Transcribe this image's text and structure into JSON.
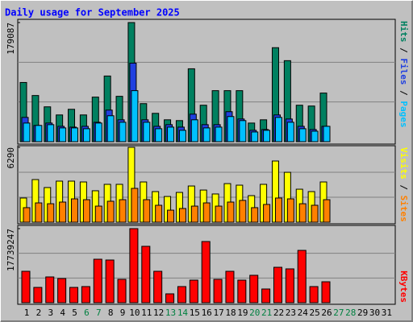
{
  "chart_data": [
    {
      "type": "bar",
      "title": "Daily usage for September 2025",
      "legend_separator": " / ",
      "ylim": [
        0,
        179087
      ],
      "yticks": [
        179087
      ],
      "series": [
        {
          "name": "Hits",
          "color": "#008060",
          "values": [
            89000,
            69400,
            52400,
            40200,
            48700,
            40200,
            67000,
            98700,
            68200,
            179087,
            57200,
            42600,
            32900,
            31700,
            109600,
            54800,
            76700,
            76700,
            76700,
            28000,
            32900,
            141300,
            121800,
            54800,
            53600,
            73100,
            null,
            null,
            null,
            null,
            null
          ]
        },
        {
          "name": "Files",
          "color": "#2040e0",
          "values": [
            36500,
            24400,
            28000,
            23100,
            21900,
            23100,
            29200,
            47500,
            32900,
            118100,
            32900,
            23100,
            25600,
            21900,
            41400,
            25600,
            25600,
            45100,
            34100,
            17100,
            18300,
            40200,
            34100,
            23100,
            18300,
            23100,
            null,
            null,
            null,
            null,
            null
          ]
        },
        {
          "name": "Pages",
          "color": "#00c0ff",
          "values": [
            28000,
            24400,
            25600,
            20700,
            20700,
            19500,
            28000,
            39000,
            29200,
            76700,
            29200,
            19500,
            21900,
            17100,
            32900,
            20700,
            21900,
            37800,
            31700,
            14600,
            17100,
            36500,
            29200,
            19500,
            15800,
            23100,
            null,
            null,
            null,
            null,
            null
          ]
        }
      ]
    },
    {
      "type": "bar",
      "legend_separator": " / ",
      "ylim": [
        0,
        6290
      ],
      "yticks": [
        6290
      ],
      "series": [
        {
          "name": "Visits",
          "color": "#ffff00",
          "values": [
            2030,
            3580,
            2910,
            3450,
            3450,
            3380,
            2640,
            3180,
            3180,
            6290,
            3380,
            2570,
            2160,
            2500,
            3040,
            2700,
            2370,
            3240,
            3110,
            2230,
            3180,
            5140,
            4190,
            2770,
            2570,
            3380,
            null,
            null,
            null,
            null,
            null
          ]
        },
        {
          "name": "Sites",
          "color": "#ff8000",
          "values": [
            1220,
            1620,
            1550,
            1690,
            1960,
            1890,
            1350,
            1760,
            1890,
            2840,
            1890,
            1420,
            1010,
            1150,
            1350,
            1620,
            1350,
            1690,
            1830,
            1220,
            1490,
            2030,
            1960,
            1550,
            1420,
            1890,
            null,
            null,
            null,
            null,
            null
          ]
        }
      ]
    },
    {
      "type": "bar",
      "ylim": [
        0,
        17739247
      ],
      "yticks": [
        17739247
      ],
      "categories": [
        "1",
        "2",
        "3",
        "4",
        "5",
        "6",
        "7",
        "8",
        "9",
        "10",
        "11",
        "12",
        "13",
        "14",
        "15",
        "16",
        "17",
        "18",
        "19",
        "20",
        "21",
        "22",
        "23",
        "24",
        "25",
        "26",
        "27",
        "28",
        "29",
        "30",
        "31"
      ],
      "category_colors": [
        "#000000",
        "#000000",
        "#000000",
        "#000000",
        "#000000",
        "#008040",
        "#008040",
        "#000000",
        "#000000",
        "#000000",
        "#000000",
        "#000000",
        "#008040",
        "#008040",
        "#000000",
        "#000000",
        "#000000",
        "#000000",
        "#000000",
        "#008040",
        "#008040",
        "#000000",
        "#000000",
        "#000000",
        "#000000",
        "#000000",
        "#008040",
        "#008040",
        "#000000",
        "#000000",
        "#000000"
      ],
      "series": [
        {
          "name": "KBytes",
          "color": "#ff0000",
          "values": [
            7520000,
            3660000,
            6170000,
            5780000,
            3660000,
            3860000,
            10410000,
            10220000,
            5590000,
            17739247,
            13500000,
            7520000,
            2120000,
            3860000,
            5400000,
            14650000,
            5590000,
            7520000,
            5400000,
            6560000,
            3280000,
            8480000,
            8100000,
            12530000,
            3860000,
            5010000,
            null,
            null,
            null,
            null,
            null
          ]
        }
      ]
    }
  ]
}
